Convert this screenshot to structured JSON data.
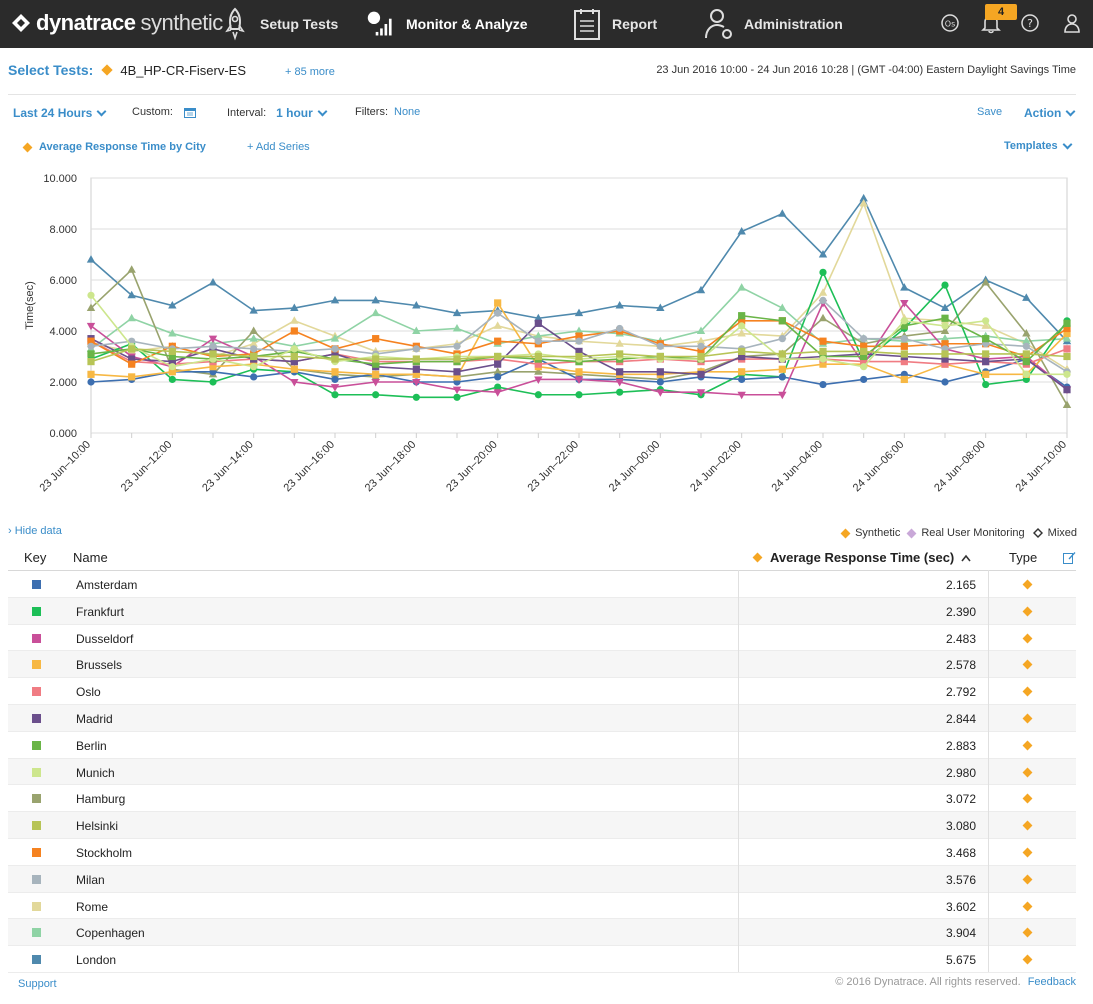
{
  "nav": {
    "brand": "dynatrace",
    "product": "synthetic",
    "items": [
      {
        "label": "Setup Tests",
        "icon": "rocket-icon"
      },
      {
        "label": "Monitor & Analyze",
        "icon": "monitor-chart-icon",
        "active": true
      },
      {
        "label": "Report",
        "icon": "report-icon"
      },
      {
        "label": "Administration",
        "icon": "user-gear-icon"
      }
    ],
    "notification_count": "4"
  },
  "header": {
    "select_label": "Select Tests:",
    "test_name": "4B_HP-CR-Fiserv-ES",
    "more": "+ 85 more",
    "date_range": "23 Jun 2016 10:00 - 24 Jun 2016 10:28  | (GMT -04:00) Eastern Daylight Savings Time"
  },
  "toolbar": {
    "range": "Last 24 Hours",
    "custom_label": "Custom:",
    "interval_label": "Interval:",
    "interval_value": "1 hour",
    "filters_label": "Filters:",
    "filters_value": "None",
    "save": "Save",
    "action": "Action"
  },
  "series_bar": {
    "series_name": "Average Response Time by City",
    "add_series": "+ Add Series",
    "templates": "Templates"
  },
  "chart_data": {
    "type": "line",
    "ylabel": "Time(sec)",
    "ylim": [
      0,
      10
    ],
    "yticks": [
      "0.000",
      "2.000",
      "4.000",
      "6.000",
      "8.000",
      "10.000"
    ],
    "x": [
      "23 Jun–10:00",
      "23 Jun–11:00",
      "23 Jun–12:00",
      "23 Jun–13:00",
      "23 Jun–14:00",
      "23 Jun–15:00",
      "23 Jun–16:00",
      "23 Jun–17:00",
      "23 Jun–18:00",
      "23 Jun–19:00",
      "23 Jun–20:00",
      "23 Jun–21:00",
      "23 Jun–22:00",
      "23 Jun–23:00",
      "24 Jun–00:00",
      "24 Jun–01:00",
      "24 Jun–02:00",
      "24 Jun–03:00",
      "24 Jun–04:00",
      "24 Jun–05:00",
      "24 Jun–06:00",
      "24 Jun–07:00",
      "24 Jun–08:00",
      "24 Jun–09:00",
      "24 Jun–10:00"
    ],
    "xtick_labels": [
      "23 Jun–10:00",
      "23 Jun–12:00",
      "23 Jun–14:00",
      "23 Jun–16:00",
      "23 Jun–18:00",
      "23 Jun–20:00",
      "23 Jun–22:00",
      "24 Jun–00:00",
      "24 Jun–02:00",
      "24 Jun–04:00",
      "24 Jun–06:00",
      "24 Jun–08:00",
      "24 Jun–10:00"
    ],
    "grid": true,
    "series": [
      {
        "name": "London",
        "color": "#4f89ad",
        "marker": "triangle",
        "values": [
          6.8,
          5.4,
          5.0,
          5.9,
          4.8,
          4.9,
          5.2,
          5.2,
          5.0,
          4.7,
          4.8,
          4.5,
          4.7,
          5.0,
          4.9,
          5.6,
          7.9,
          8.6,
          7.0,
          9.2,
          5.7,
          4.9,
          6.0,
          5.3,
          3.6
        ]
      },
      {
        "name": "Rome",
        "color": "#e2d89a",
        "marker": "triangle",
        "values": [
          3.5,
          3.2,
          3.4,
          3.0,
          3.5,
          4.4,
          3.8,
          3.2,
          3.3,
          3.5,
          4.2,
          3.8,
          3.6,
          3.5,
          3.4,
          3.6,
          3.9,
          3.8,
          5.5,
          9.0,
          4.5,
          4.4,
          4.2,
          3.5,
          2.5
        ]
      },
      {
        "name": "Copenhagen",
        "color": "#8fd3a5",
        "marker": "triangle",
        "values": [
          3.3,
          4.5,
          3.9,
          3.5,
          3.7,
          3.4,
          3.7,
          4.7,
          4.0,
          4.1,
          3.5,
          3.8,
          4.0,
          3.9,
          3.6,
          4.0,
          5.7,
          4.9,
          3.5,
          3.7,
          3.6,
          3.7,
          3.8,
          3.6,
          3.7
        ]
      },
      {
        "name": "Hamburg",
        "color": "#99a36e",
        "marker": "triangle",
        "values": [
          4.9,
          6.4,
          2.5,
          2.3,
          4.0,
          2.5,
          2.3,
          2.2,
          2.3,
          2.2,
          2.4,
          2.4,
          2.3,
          2.2,
          2.1,
          2.4,
          3.0,
          3.1,
          4.5,
          3.5,
          3.8,
          4.0,
          5.9,
          3.9,
          1.1
        ]
      },
      {
        "name": "Frankfurt",
        "color": "#1dbf57",
        "marker": "circle",
        "values": [
          2.9,
          3.5,
          2.1,
          2.0,
          2.5,
          2.4,
          1.5,
          1.5,
          1.4,
          1.4,
          1.8,
          1.5,
          1.5,
          1.6,
          1.7,
          1.5,
          2.3,
          2.2,
          6.3,
          2.8,
          4.1,
          5.8,
          1.9,
          2.1,
          4.4
        ]
      },
      {
        "name": "Amsterdam",
        "color": "#3d6fb0",
        "marker": "circle",
        "values": [
          2.0,
          2.1,
          2.4,
          2.4,
          2.2,
          2.4,
          2.1,
          2.3,
          2.0,
          2.0,
          2.2,
          2.9,
          2.1,
          2.1,
          2.0,
          2.2,
          2.1,
          2.2,
          1.9,
          2.1,
          2.3,
          2.0,
          2.4,
          2.9,
          1.8
        ]
      },
      {
        "name": "Dusseldorf",
        "color": "#c94f99",
        "marker": "triangle-down",
        "values": [
          4.2,
          3.0,
          2.6,
          3.7,
          3.0,
          2.0,
          1.8,
          2.0,
          2.0,
          1.7,
          1.6,
          2.1,
          2.1,
          2.0,
          1.6,
          1.6,
          1.5,
          1.5,
          5.1,
          2.7,
          5.1,
          3.3,
          2.9,
          3.0,
          1.7
        ]
      },
      {
        "name": "Brussels",
        "color": "#f7b844",
        "marker": "square",
        "values": [
          2.3,
          2.2,
          2.4,
          2.6,
          2.7,
          2.5,
          2.4,
          2.3,
          2.3,
          2.2,
          5.1,
          2.6,
          2.4,
          2.3,
          2.3,
          2.4,
          2.4,
          2.5,
          2.7,
          2.7,
          2.1,
          2.7,
          2.3,
          2.3,
          3.9
        ]
      },
      {
        "name": "Oslo",
        "color": "#f07c83",
        "marker": "square",
        "values": [
          3.6,
          2.8,
          2.7,
          2.8,
          2.9,
          2.8,
          3.1,
          2.8,
          2.8,
          2.8,
          2.9,
          2.7,
          2.8,
          2.8,
          2.9,
          2.8,
          2.9,
          2.9,
          2.9,
          2.8,
          2.8,
          2.7,
          2.8,
          2.7,
          3.3
        ]
      },
      {
        "name": "Madrid",
        "color": "#6b4f8c",
        "marker": "square",
        "values": [
          3.7,
          2.9,
          2.8,
          3.3,
          2.9,
          2.8,
          3.1,
          2.6,
          2.5,
          2.4,
          2.7,
          4.3,
          3.2,
          2.4,
          2.4,
          2.3,
          3.0,
          2.9,
          3.0,
          3.1,
          3.0,
          2.9,
          2.8,
          2.9,
          1.7
        ]
      },
      {
        "name": "Stockholm",
        "color": "#f58220",
        "marker": "square",
        "values": [
          3.6,
          2.7,
          3.4,
          3.0,
          3.1,
          4.0,
          3.3,
          3.7,
          3.4,
          3.1,
          3.6,
          3.5,
          3.8,
          4.0,
          3.5,
          3.2,
          4.4,
          4.4,
          3.6,
          3.4,
          3.4,
          3.5,
          3.5,
          3.0,
          4.1
        ]
      },
      {
        "name": "Milan",
        "color": "#a7b4bd",
        "marker": "circle",
        "values": [
          3.4,
          3.6,
          3.3,
          3.4,
          3.3,
          3.2,
          3.3,
          3.1,
          3.3,
          3.4,
          4.7,
          3.6,
          3.6,
          4.1,
          3.4,
          3.4,
          3.3,
          3.7,
          5.2,
          3.7,
          3.7,
          3.3,
          3.5,
          3.4,
          2.4
        ]
      },
      {
        "name": "Berlin",
        "color": "#6ab547",
        "marker": "square",
        "values": [
          3.1,
          3.3,
          3.0,
          2.9,
          3.0,
          3.2,
          2.9,
          2.7,
          2.8,
          2.8,
          3.0,
          2.9,
          2.8,
          2.9,
          3.0,
          2.9,
          4.6,
          4.4,
          3.0,
          3.0,
          4.2,
          4.5,
          3.7,
          2.8,
          4.3
        ]
      },
      {
        "name": "Munich",
        "color": "#cde68d",
        "marker": "circle",
        "values": [
          5.4,
          3.4,
          2.6,
          2.9,
          2.6,
          3.3,
          2.8,
          3.0,
          2.9,
          3.0,
          3.0,
          3.1,
          2.9,
          3.0,
          2.9,
          2.9,
          4.2,
          2.9,
          2.9,
          2.6,
          4.4,
          4.2,
          4.4,
          2.3,
          2.3
        ]
      },
      {
        "name": "Helsinki",
        "color": "#b7c456",
        "marker": "square",
        "values": [
          2.8,
          3.3,
          3.2,
          3.1,
          3.0,
          3.0,
          2.9,
          2.9,
          2.9,
          2.9,
          3.0,
          3.0,
          3.0,
          3.1,
          3.0,
          3.0,
          3.2,
          3.1,
          3.2,
          3.2,
          3.1,
          3.1,
          3.1,
          3.1,
          3.0
        ]
      }
    ]
  },
  "table": {
    "hide_data": "› Hide data",
    "legend": [
      {
        "label": "Synthetic",
        "color": "#f5a623"
      },
      {
        "label": "Real User Monitoring",
        "color": "#c9a8d8"
      },
      {
        "label": "Mixed",
        "color": "#333333"
      }
    ],
    "headers": {
      "key": "Key",
      "name": "Name",
      "metric": "Average Response Time (sec)",
      "type": "Type"
    },
    "rows": [
      {
        "name": "Amsterdam",
        "value": "2.165",
        "color": "#3d6fb0"
      },
      {
        "name": "Frankfurt",
        "value": "2.390",
        "color": "#1dbf57"
      },
      {
        "name": "Dusseldorf",
        "value": "2.483",
        "color": "#c94f99"
      },
      {
        "name": "Brussels",
        "value": "2.578",
        "color": "#f7b844"
      },
      {
        "name": "Oslo",
        "value": "2.792",
        "color": "#f07c83"
      },
      {
        "name": "Madrid",
        "value": "2.844",
        "color": "#6b4f8c"
      },
      {
        "name": "Berlin",
        "value": "2.883",
        "color": "#6ab547"
      },
      {
        "name": "Munich",
        "value": "2.980",
        "color": "#cde68d"
      },
      {
        "name": "Hamburg",
        "value": "3.072",
        "color": "#99a36e"
      },
      {
        "name": "Helsinki",
        "value": "3.080",
        "color": "#b7c456"
      },
      {
        "name": "Stockholm",
        "value": "3.468",
        "color": "#f58220"
      },
      {
        "name": "Milan",
        "value": "3.576",
        "color": "#a7b4bd"
      },
      {
        "name": "Rome",
        "value": "3.602",
        "color": "#e2d89a"
      },
      {
        "name": "Copenhagen",
        "value": "3.904",
        "color": "#8fd3a5"
      },
      {
        "name": "London",
        "value": "5.675",
        "color": "#4f89ad"
      }
    ]
  },
  "footer": {
    "support": "Support",
    "copyright": "© 2016 Dynatrace. All rights reserved.",
    "feedback": "Feedback"
  }
}
